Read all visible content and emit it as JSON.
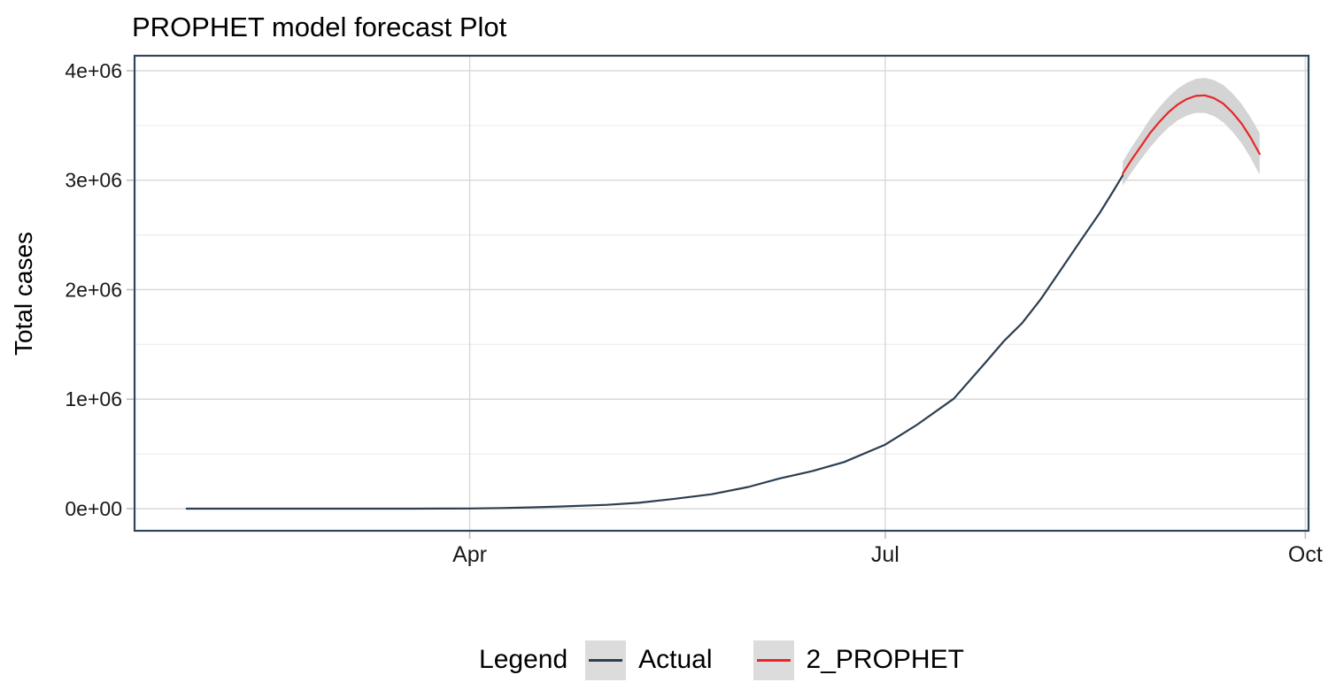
{
  "chart": {
    "title": "PROPHET model forecast Plot",
    "y_axis_title": "Total cases"
  },
  "legend": {
    "title": "Legend",
    "key_background": "#dcdcdc",
    "items": [
      {
        "label": "Actual",
        "color": "#2c3e50"
      },
      {
        "label": "2_PROPHET",
        "color": "#e8262b"
      }
    ]
  },
  "chart_data": {
    "type": "line",
    "title": "PROPHET model forecast Plot",
    "xlabel": "",
    "ylabel": "Total cases",
    "x_unit": "day-of-year-2020",
    "x_domain": [
      18.6,
      275.7
    ],
    "ylim": [
      -202000,
      4137000
    ],
    "grid": "major-x, major+minor-y",
    "legend_position": "bottom",
    "x_ticks": [
      {
        "x": 92,
        "label": "Apr"
      },
      {
        "x": 183,
        "label": "Jul"
      },
      {
        "x": 275,
        "label": "Oct"
      }
    ],
    "y_ticks": [
      {
        "value": 0,
        "label": "0e+00"
      },
      {
        "value": 1000000,
        "label": "1e+06"
      },
      {
        "value": 2000000,
        "label": "2e+06"
      },
      {
        "value": 3000000,
        "label": "3e+06"
      },
      {
        "value": 4000000,
        "label": "4e+06"
      }
    ],
    "y_minor_ticks": [
      500000,
      1500000,
      2500000,
      3500000
    ],
    "colors": {
      "actual_line": "#2c3e50",
      "forecast_line": "#e8262b",
      "confidence_band": "#d4d4d4",
      "grid_major": "#d8d8d8",
      "grid_minor": "#ebebeb",
      "panel_border": "#31455a",
      "tick_mark": "#bdbdbd",
      "tick_label": "#1a1a1a"
    },
    "series": [
      {
        "name": "Actual",
        "color": "#2c3e50",
        "x": [
          30,
          45,
          61,
          70,
          80,
          86,
          92,
          99,
          106,
          113,
          122,
          129,
          137,
          145,
          153,
          160,
          167,
          174,
          183,
          190,
          198,
          205,
          209,
          213,
          217,
          222,
          226,
          230,
          233,
          235
        ],
        "values": [
          1,
          2,
          3,
          30,
          250,
          700,
          2000,
          5900,
          12400,
          21400,
          35000,
          53000,
          90600,
          132000,
          198000,
          277000,
          343000,
          426000,
          585000,
          768000,
          1004000,
          1337000,
          1531000,
          1696000,
          1910000,
          2215000,
          2461000,
          2703000,
          2905000,
          3044000
        ]
      },
      {
        "name": "2_PROPHET",
        "color": "#e8262b",
        "band_color": "#d4d4d4",
        "x": [
          235,
          237,
          239,
          241,
          243,
          245,
          247,
          249,
          251,
          253,
          255,
          257,
          259,
          261,
          263,
          265
        ],
        "values": [
          3060000,
          3190000,
          3310000,
          3430000,
          3530000,
          3620000,
          3690000,
          3740000,
          3770000,
          3775000,
          3750000,
          3700000,
          3620000,
          3520000,
          3390000,
          3240000
        ],
        "lower": [
          2950000,
          3075000,
          3190000,
          3300000,
          3395000,
          3480000,
          3545000,
          3590000,
          3615000,
          3615000,
          3585000,
          3530000,
          3445000,
          3340000,
          3205000,
          3050000
        ],
        "upper": [
          3170000,
          3305000,
          3430000,
          3560000,
          3665000,
          3760000,
          3835000,
          3890000,
          3925000,
          3935000,
          3915000,
          3870000,
          3795000,
          3700000,
          3575000,
          3430000
        ]
      }
    ]
  }
}
